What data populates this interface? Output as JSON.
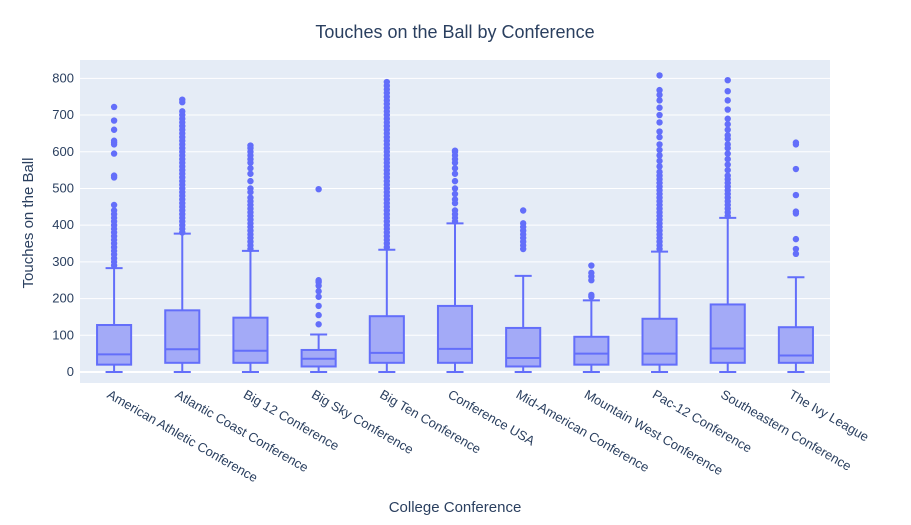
{
  "chart_data": {
    "type": "box",
    "title": "Touches on the Ball by Conference",
    "xlabel": "College Conference",
    "ylabel": "Touches on the Ball",
    "ylim": [
      -30,
      850
    ],
    "yticks": [
      0,
      100,
      200,
      300,
      400,
      500,
      600,
      700,
      800
    ],
    "grid": true,
    "legend": "none",
    "colors": {
      "box_fill": "#a3aaf7",
      "box_line": "#636efa",
      "plot_bg": "#e5ecf6",
      "grid": "#ffffff",
      "text": "#2a3f5f"
    },
    "categories": [
      "American Athletic Conference",
      "Atlantic Coast Conference",
      "Big 12 Conference",
      "Big Sky Conference",
      "Big Ten Conference",
      "Conference USA",
      "Mid-American Conference",
      "Mountain West Conference",
      "Pac-12 Conference",
      "Southeastern Conference",
      "The Ivy League"
    ],
    "boxes": [
      {
        "min": 0,
        "q1": 20,
        "median": 48,
        "q3": 128,
        "upper_fence": 283,
        "outliers": [
          290,
          300,
          310,
          320,
          330,
          340,
          350,
          360,
          370,
          380,
          390,
          400,
          410,
          420,
          430,
          440,
          455,
          530,
          535,
          595,
          620,
          625,
          630,
          660,
          685,
          722
        ]
      },
      {
        "min": 0,
        "q1": 25,
        "median": 62,
        "q3": 168,
        "upper_fence": 377,
        "outliers": [
          380,
          390,
          400,
          410,
          420,
          430,
          440,
          450,
          460,
          470,
          480,
          490,
          500,
          510,
          520,
          530,
          540,
          550,
          560,
          570,
          580,
          590,
          600,
          610,
          620,
          630,
          640,
          650,
          660,
          670,
          680,
          690,
          700,
          710,
          735,
          742
        ]
      },
      {
        "min": 0,
        "q1": 25,
        "median": 58,
        "q3": 148,
        "upper_fence": 330,
        "outliers": [
          335,
          345,
          355,
          365,
          375,
          385,
          395,
          405,
          415,
          425,
          435,
          445,
          455,
          465,
          475,
          490,
          500,
          520,
          540,
          555,
          570,
          580,
          590,
          600,
          610,
          617
        ]
      },
      {
        "min": 0,
        "q1": 15,
        "median": 36,
        "q3": 60,
        "upper_fence": 102,
        "outliers": [
          130,
          155,
          180,
          205,
          220,
          235,
          245,
          250,
          498
        ]
      },
      {
        "min": 0,
        "q1": 25,
        "median": 52,
        "q3": 152,
        "upper_fence": 333,
        "outliers": [
          340,
          350,
          360,
          370,
          380,
          390,
          400,
          410,
          420,
          430,
          440,
          450,
          460,
          470,
          480,
          490,
          500,
          510,
          520,
          530,
          540,
          550,
          560,
          570,
          580,
          590,
          600,
          610,
          620,
          630,
          640,
          650,
          660,
          670,
          680,
          690,
          700,
          710,
          720,
          730,
          740,
          750,
          760,
          770,
          780,
          790
        ]
      },
      {
        "min": 0,
        "q1": 25,
        "median": 63,
        "q3": 180,
        "upper_fence": 405,
        "outliers": [
          410,
          420,
          430,
          440,
          460,
          470,
          485,
          500,
          520,
          540,
          555,
          570,
          580,
          590,
          600,
          603
        ]
      },
      {
        "min": 0,
        "q1": 15,
        "median": 38,
        "q3": 120,
        "upper_fence": 262,
        "outliers": [
          335,
          345,
          355,
          365,
          375,
          385,
          395,
          405,
          440
        ]
      },
      {
        "min": 0,
        "q1": 20,
        "median": 50,
        "q3": 96,
        "upper_fence": 195,
        "outliers": [
          205,
          210,
          250,
          260,
          270,
          290
        ]
      },
      {
        "min": 0,
        "q1": 20,
        "median": 50,
        "q3": 145,
        "upper_fence": 328,
        "outliers": [
          335,
          345,
          355,
          365,
          375,
          385,
          395,
          405,
          415,
          425,
          435,
          445,
          455,
          465,
          475,
          485,
          495,
          505,
          515,
          525,
          535,
          545,
          560,
          575,
          590,
          605,
          620,
          640,
          655,
          680,
          700,
          720,
          740,
          755,
          768,
          808
        ]
      },
      {
        "min": 0,
        "q1": 25,
        "median": 64,
        "q3": 184,
        "upper_fence": 420,
        "outliers": [
          425,
          435,
          445,
          455,
          465,
          475,
          485,
          495,
          505,
          515,
          525,
          535,
          550,
          565,
          580,
          595,
          610,
          620,
          635,
          645,
          660,
          675,
          690,
          715,
          740,
          765,
          795
        ]
      },
      {
        "min": 0,
        "q1": 25,
        "median": 45,
        "q3": 122,
        "upper_fence": 258,
        "outliers": [
          322,
          335,
          362,
          432,
          437,
          482,
          553,
          620,
          625
        ]
      }
    ]
  }
}
